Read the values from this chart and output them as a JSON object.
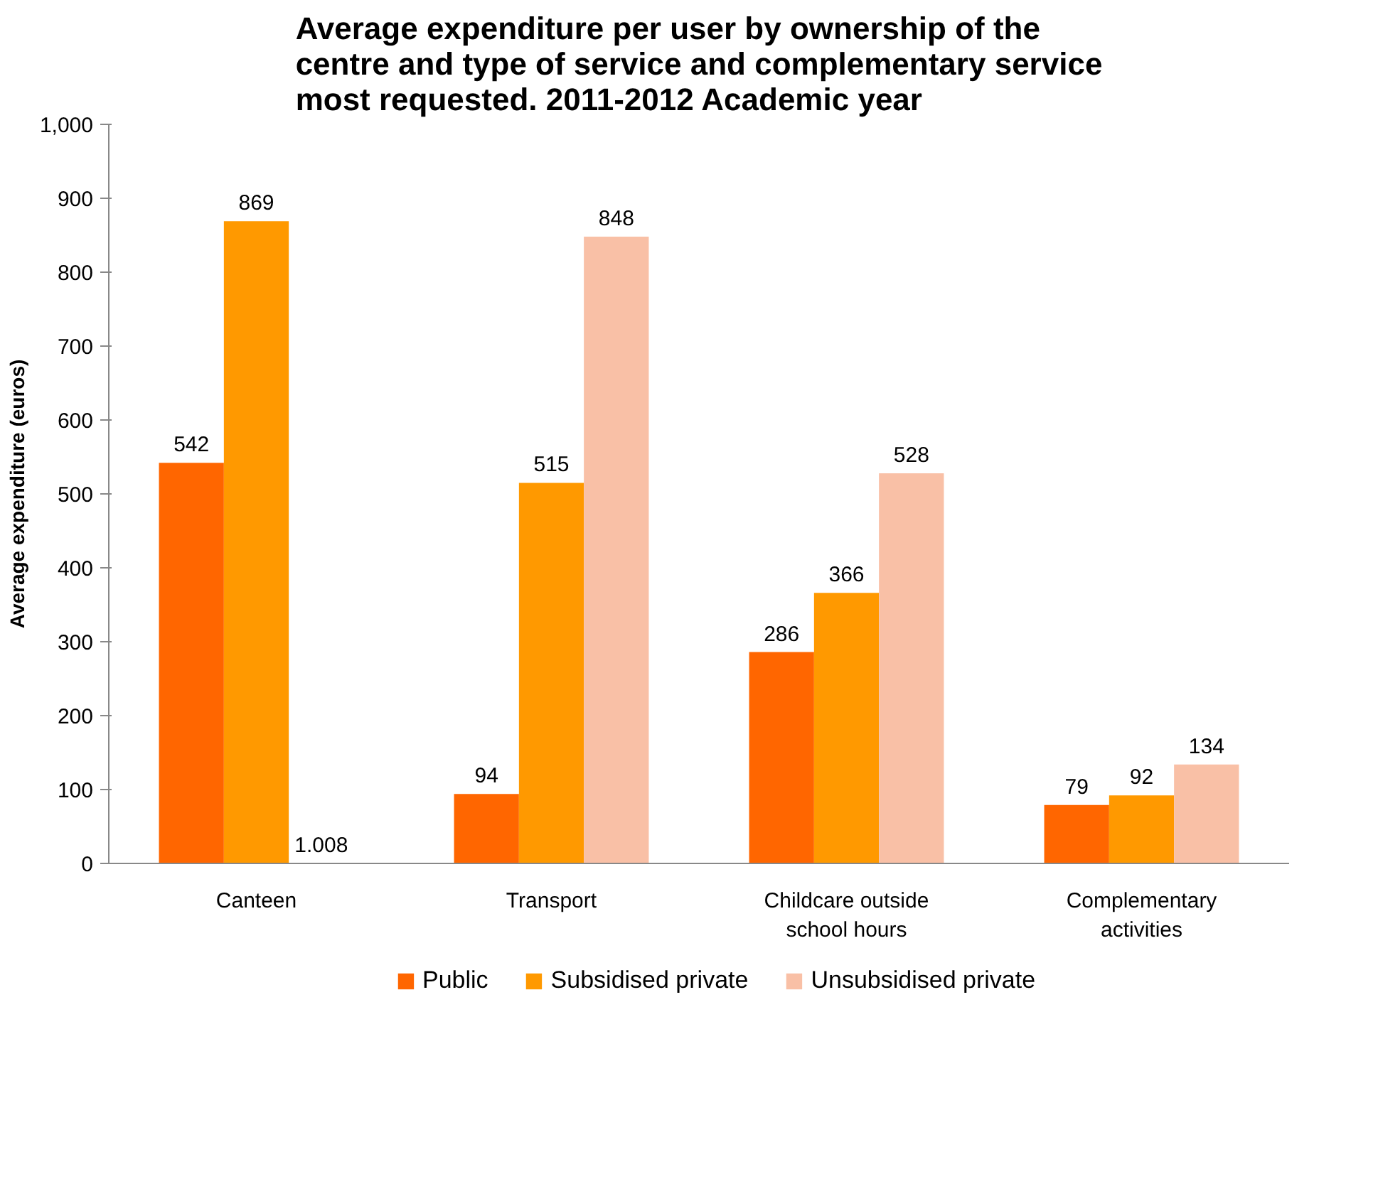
{
  "chart_data": {
    "type": "bar",
    "title": "Average expenditure per user by ownership of the centre and type of service and complementary service most requested. 2011-2012 Academic year",
    "ylabel": "Average expenditure (euros)",
    "categories": [
      "Canteen",
      "Transport",
      "Childcare outside school hours",
      "Complementary activities"
    ],
    "series": [
      {
        "name": "Public",
        "color": "#ff6600",
        "values": [
          542,
          94,
          286,
          79
        ],
        "value_labels": [
          "542",
          "94",
          "286",
          "79"
        ]
      },
      {
        "name": "Subsidised private",
        "color": "#ff9900",
        "values": [
          869,
          515,
          366,
          92
        ],
        "value_labels": [
          "869",
          "515",
          "366",
          "92"
        ]
      },
      {
        "name": "Unsubsidised private",
        "color": "#f9c0a6",
        "values": [
          null,
          848,
          528,
          134
        ],
        "value_labels": [
          "1.008",
          "848",
          "528",
          "134"
        ]
      }
    ],
    "ylim": [
      0,
      1000
    ],
    "yticks": [
      0,
      100,
      200,
      300,
      400,
      500,
      600,
      700,
      800,
      900,
      {
        "value": 1000,
        "label": "1,000"
      }
    ],
    "grid": false,
    "legend": "bottom"
  }
}
